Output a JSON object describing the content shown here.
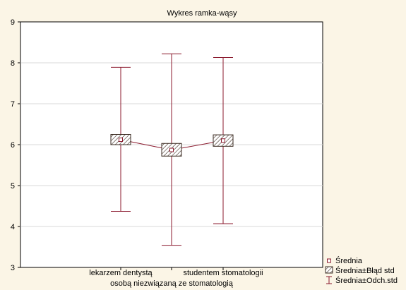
{
  "chart_data": {
    "type": "boxplot",
    "title": "Wykres ramka-wąsy",
    "xlabel": "",
    "ylabel": "",
    "ylim": [
      3,
      9
    ],
    "yticks": [
      3,
      4,
      5,
      6,
      7,
      8,
      9
    ],
    "grid": true,
    "legend_position": "bottom-right",
    "categories": [
      "lekarzem dentystą",
      "osobą niezwiązaną ze stomatologią",
      "studentem stomatologii"
    ],
    "series": [
      {
        "name": "Średnia",
        "values": [
          6.12,
          5.87,
          6.1
        ]
      },
      {
        "name": "Średnia±Błąd std",
        "low": [
          6.0,
          5.72,
          5.96
        ],
        "high": [
          6.25,
          6.03,
          6.24
        ]
      },
      {
        "name": "Średnia±Odch.std",
        "low": [
          4.37,
          3.54,
          4.07
        ],
        "high": [
          7.89,
          8.22,
          8.13
        ]
      }
    ],
    "colors": {
      "mean_line": "#8b1a2e",
      "whisker": "#8b1a2e",
      "box_stroke": "#3a2a20",
      "grid": "#d9d9d9",
      "plot_bg": "#ffffff",
      "page_bg": "#fbf5e6"
    }
  }
}
